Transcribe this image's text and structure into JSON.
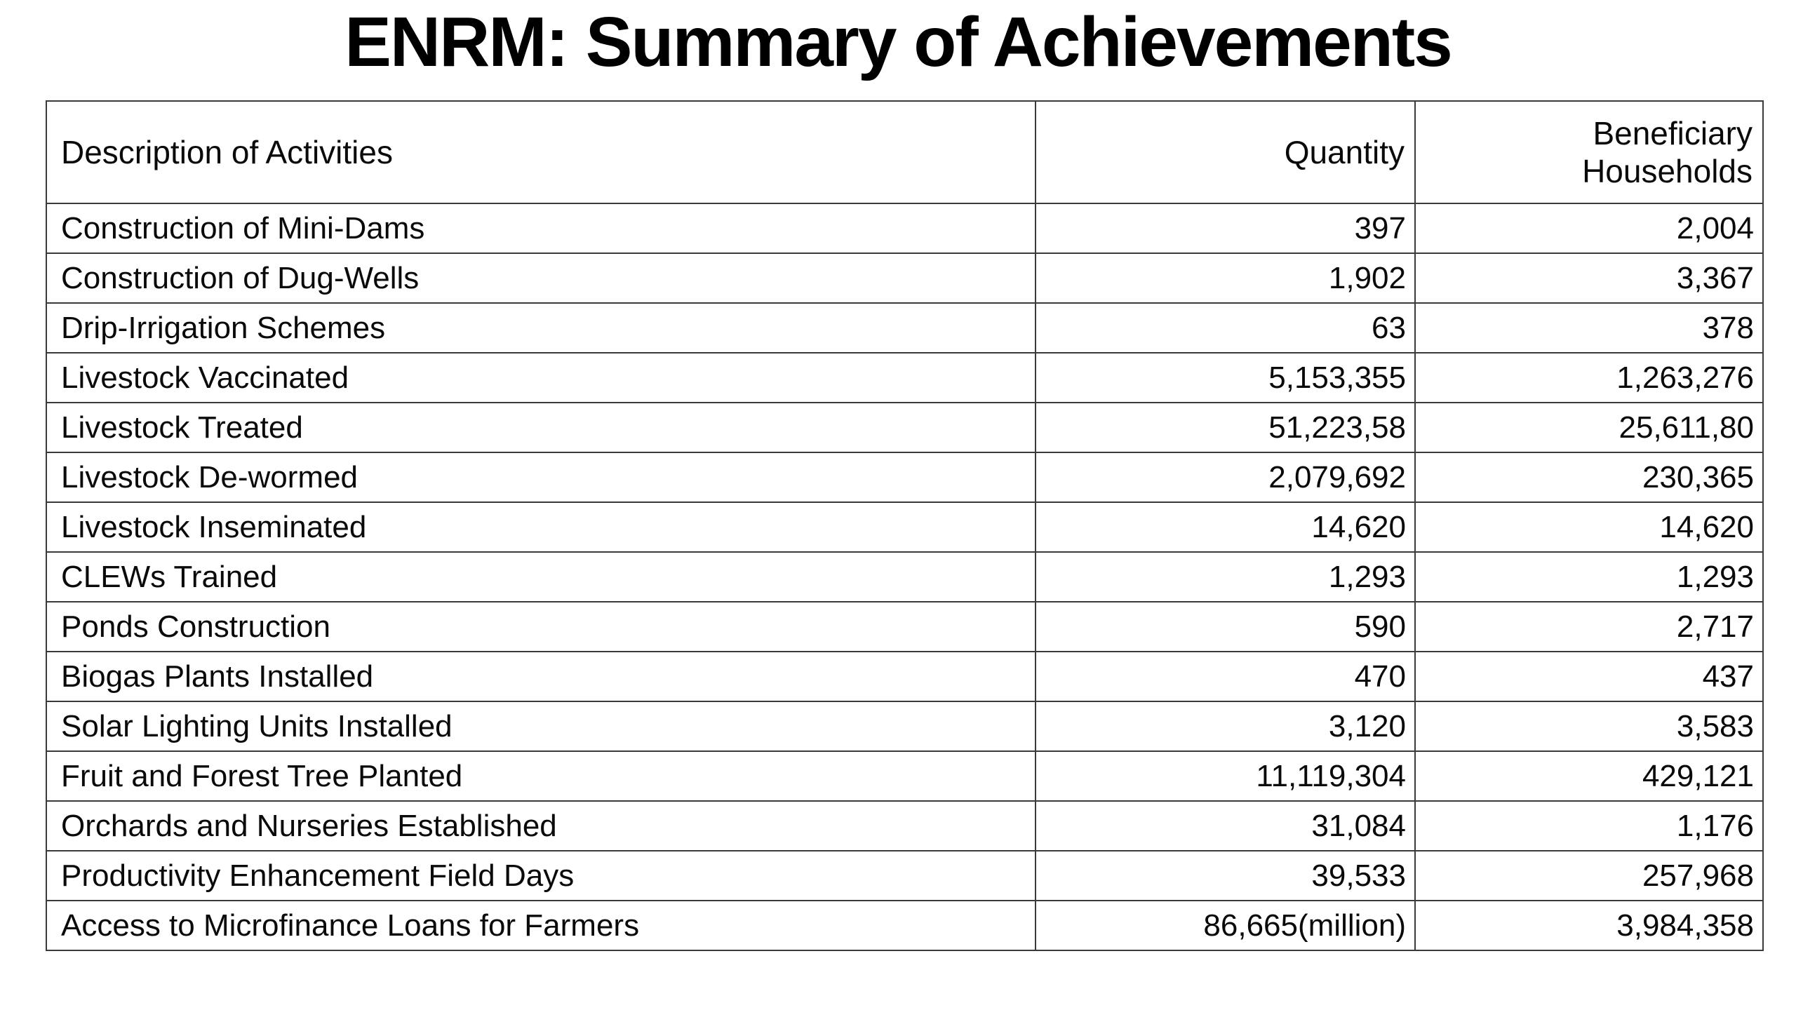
{
  "title": "ENRM: Summary of Achievements",
  "table": {
    "columns": [
      "Description of Activities",
      "Quantity",
      "Beneficiary Households"
    ],
    "rows": [
      {
        "description": "Construction of Mini-Dams",
        "quantity": "397",
        "households": "2,004"
      },
      {
        "description": "Construction of Dug-Wells",
        "quantity": "1,902",
        "households": "3,367"
      },
      {
        "description": "Drip-Irrigation Schemes",
        "quantity": "63",
        "households": "378"
      },
      {
        "description": "Livestock Vaccinated",
        "quantity": "5,153,355",
        "households": "1,263,276"
      },
      {
        "description": "Livestock Treated",
        "quantity": "51,223,58",
        "households": "25,611,80"
      },
      {
        "description": "Livestock De-wormed",
        "quantity": "2,079,692",
        "households": "230,365"
      },
      {
        "description": "Livestock Inseminated",
        "quantity": "14,620",
        "households": "14,620"
      },
      {
        "description": "CLEWs Trained",
        "quantity": "1,293",
        "households": "1,293"
      },
      {
        "description": "Ponds Construction",
        "quantity": "590",
        "households": "2,717"
      },
      {
        "description": "Biogas Plants Installed",
        "quantity": "470",
        "households": "437"
      },
      {
        "description": "Solar Lighting Units Installed",
        "quantity": "3,120",
        "households": "3,583"
      },
      {
        "description": "Fruit and Forest Tree Planted",
        "quantity": "11,119,304",
        "households": "429,121"
      },
      {
        "description": "Orchards and Nurseries Established",
        "quantity": "31,084",
        "households": "1,176"
      },
      {
        "description": "Productivity Enhancement Field Days",
        "quantity": "39,533",
        "households": "257,968"
      },
      {
        "description": "Access to Microfinance Loans for Farmers",
        "quantity": "86,665(million)",
        "households": "3,984,358"
      }
    ]
  }
}
